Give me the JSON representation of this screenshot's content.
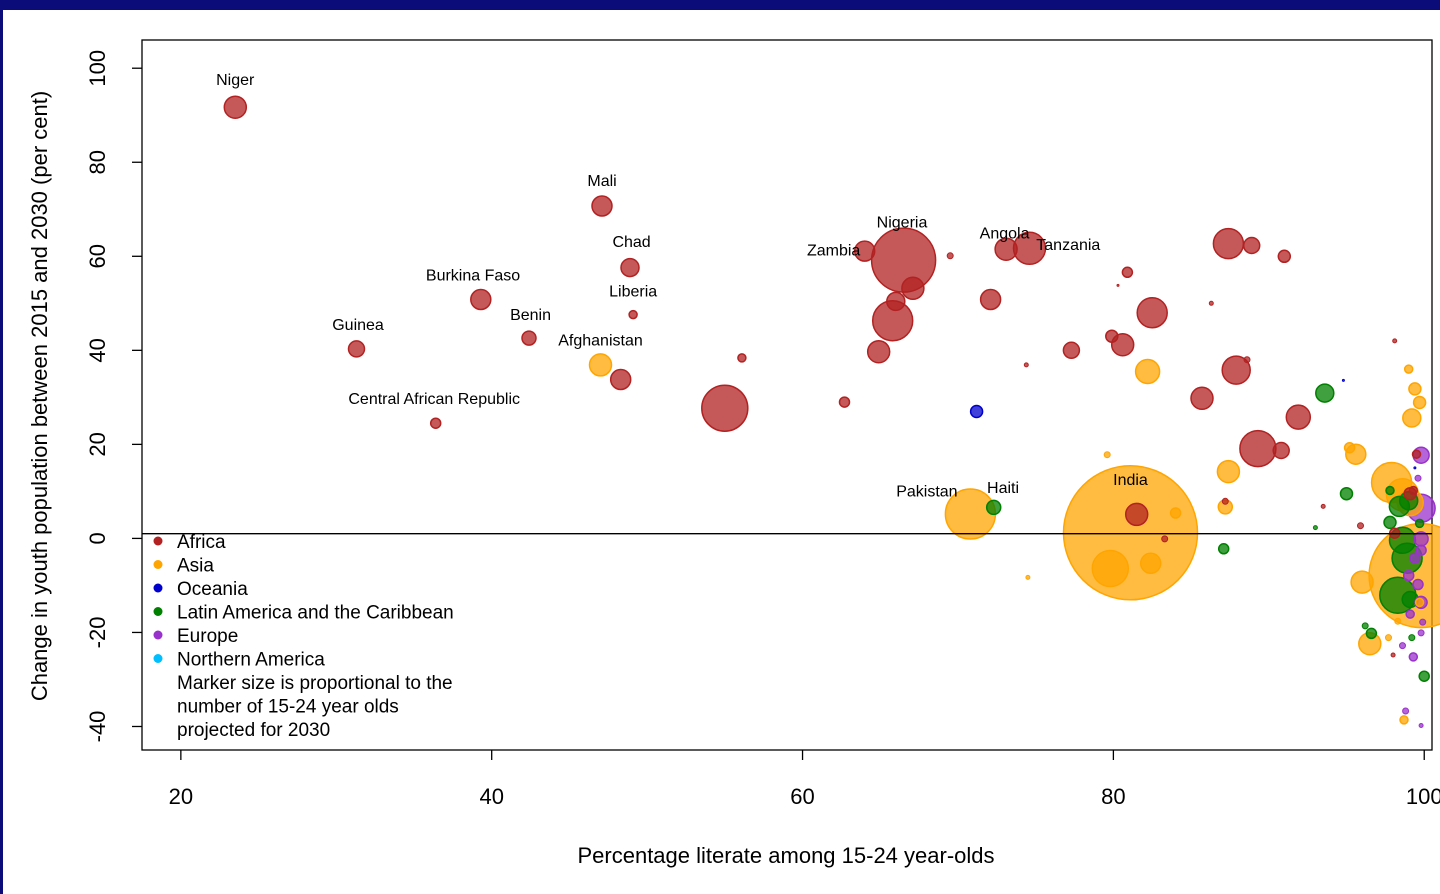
{
  "frame": {
    "border_color": "#0b0b7a"
  },
  "chart_data": {
    "type": "scatter",
    "title": "",
    "xlabel": "Percentage literate among 15-24 year-olds",
    "ylabel": "Change in youth population between 2015 and 2030 (per cent)",
    "xlim": [
      17.5,
      100.5
    ],
    "ylim": [
      -45,
      106
    ],
    "x_ticks": [
      20,
      40,
      60,
      80,
      100
    ],
    "y_ticks": [
      -40,
      -20,
      0,
      20,
      40,
      60,
      80,
      100
    ],
    "reference_line_y": 1,
    "grid": false,
    "legend": {
      "placement": "bottom-left",
      "entries": [
        {
          "name": "Africa",
          "color": "#b22222"
        },
        {
          "name": "Asia",
          "color": "#ffa500"
        },
        {
          "name": "Oceania",
          "color": "#0000cd"
        },
        {
          "name": "Latin America and the Caribbean",
          "color": "#008000"
        },
        {
          "name": "Europe",
          "color": "#9932cc"
        },
        {
          "name": "Northern America",
          "color": "#00bfff"
        }
      ],
      "note_lines": [
        "Marker size is proportional to the",
        "number of 15-24 year olds",
        "projected for 2030"
      ]
    },
    "series": [
      {
        "name": "Africa",
        "color": "#b22222",
        "points": [
          {
            "x": 23.5,
            "y": 91.7,
            "r": 11
          },
          {
            "x": 31.3,
            "y": 40.3,
            "r": 8
          },
          {
            "x": 36.4,
            "y": 24.5,
            "r": 5
          },
          {
            "x": 39.3,
            "y": 50.8,
            "r": 10
          },
          {
            "x": 42.4,
            "y": 42.6,
            "r": 7
          },
          {
            "x": 47.1,
            "y": 70.7,
            "r": 10
          },
          {
            "x": 48.9,
            "y": 57.6,
            "r": 9
          },
          {
            "x": 49.1,
            "y": 47.6,
            "r": 4
          },
          {
            "x": 48.3,
            "y": 33.8,
            "r": 10
          },
          {
            "x": 56.1,
            "y": 38.4,
            "r": 4
          },
          {
            "x": 55.0,
            "y": 27.7,
            "r": 23
          },
          {
            "x": 62.7,
            "y": 29.0,
            "r": 5
          },
          {
            "x": 64.0,
            "y": 61.1,
            "r": 10
          },
          {
            "x": 66.5,
            "y": 59.2,
            "r": 32
          },
          {
            "x": 67.1,
            "y": 53.2,
            "r": 11
          },
          {
            "x": 66.0,
            "y": 50.4,
            "r": 9
          },
          {
            "x": 65.8,
            "y": 46.3,
            "r": 20
          },
          {
            "x": 64.9,
            "y": 39.7,
            "r": 11
          },
          {
            "x": 69.5,
            "y": 60.1,
            "r": 3
          },
          {
            "x": 72.1,
            "y": 50.8,
            "r": 10
          },
          {
            "x": 73.1,
            "y": 61.5,
            "r": 11
          },
          {
            "x": 74.6,
            "y": 61.7,
            "r": 16
          },
          {
            "x": 74.4,
            "y": 36.9,
            "r": 2
          },
          {
            "x": 77.3,
            "y": 40.0,
            "r": 8
          },
          {
            "x": 79.9,
            "y": 43.0,
            "r": 6
          },
          {
            "x": 80.6,
            "y": 41.2,
            "r": 11
          },
          {
            "x": 80.9,
            "y": 56.6,
            "r": 5
          },
          {
            "x": 80.3,
            "y": 53.8,
            "r": 1
          },
          {
            "x": 82.5,
            "y": 48.0,
            "r": 15
          },
          {
            "x": 81.5,
            "y": 5.1,
            "r": 11
          },
          {
            "x": 83.3,
            "y": -0.1,
            "r": 3
          },
          {
            "x": 85.7,
            "y": 29.8,
            "r": 11
          },
          {
            "x": 86.3,
            "y": 50.0,
            "r": 2
          },
          {
            "x": 87.4,
            "y": 62.7,
            "r": 15
          },
          {
            "x": 88.9,
            "y": 62.3,
            "r": 8
          },
          {
            "x": 87.9,
            "y": 35.8,
            "r": 14
          },
          {
            "x": 88.6,
            "y": 38.0,
            "r": 3
          },
          {
            "x": 87.2,
            "y": 7.9,
            "r": 3
          },
          {
            "x": 91.0,
            "y": 60.0,
            "r": 6
          },
          {
            "x": 89.3,
            "y": 19.1,
            "r": 18
          },
          {
            "x": 90.8,
            "y": 18.7,
            "r": 8
          },
          {
            "x": 91.9,
            "y": 25.8,
            "r": 12
          },
          {
            "x": 93.5,
            "y": 6.8,
            "r": 2
          },
          {
            "x": 95.9,
            "y": 2.7,
            "r": 3
          },
          {
            "x": 98.1,
            "y": 42.0,
            "r": 2
          },
          {
            "x": 98.1,
            "y": 1.1,
            "r": 5
          },
          {
            "x": 99.3,
            "y": 10.2,
            "r": 4
          },
          {
            "x": 99.1,
            "y": 9.5,
            "r": 6
          },
          {
            "x": 99.5,
            "y": 17.9,
            "r": 4
          },
          {
            "x": 98.0,
            "y": -24.8,
            "r": 2
          }
        ]
      },
      {
        "name": "Asia",
        "color": "#ffa500",
        "points": [
          {
            "x": 81.1,
            "y": 1.2,
            "r": 67
          },
          {
            "x": 99.8,
            "y": -7.9,
            "r": 52
          },
          {
            "x": 97.9,
            "y": 11.9,
            "r": 20
          },
          {
            "x": 98.6,
            "y": 9.3,
            "r": 16
          },
          {
            "x": 99.1,
            "y": 7.6,
            "r": 13
          },
          {
            "x": 70.8,
            "y": 5.2,
            "r": 25
          },
          {
            "x": 79.8,
            "y": -6.4,
            "r": 18
          },
          {
            "x": 82.4,
            "y": -5.3,
            "r": 10
          },
          {
            "x": 47.0,
            "y": 36.9,
            "r": 11
          },
          {
            "x": 82.2,
            "y": 35.5,
            "r": 12
          },
          {
            "x": 87.4,
            "y": 14.2,
            "r": 11
          },
          {
            "x": 95.6,
            "y": 17.9,
            "r": 10
          },
          {
            "x": 95.2,
            "y": 19.3,
            "r": 5
          },
          {
            "x": 96.5,
            "y": -22.4,
            "r": 11
          },
          {
            "x": 96.0,
            "y": -9.3,
            "r": 11
          },
          {
            "x": 99.2,
            "y": 25.6,
            "r": 9
          },
          {
            "x": 99.7,
            "y": 28.9,
            "r": 6
          },
          {
            "x": 99.4,
            "y": 31.8,
            "r": 6
          },
          {
            "x": 99.0,
            "y": 36.0,
            "r": 4
          },
          {
            "x": 87.2,
            "y": 6.7,
            "r": 7
          },
          {
            "x": 84.0,
            "y": 5.4,
            "r": 5
          },
          {
            "x": 79.6,
            "y": 17.8,
            "r": 3
          },
          {
            "x": 74.5,
            "y": -8.3,
            "r": 2
          },
          {
            "x": 98.7,
            "y": -38.6,
            "r": 4
          },
          {
            "x": 97.7,
            "y": -21.1,
            "r": 3
          },
          {
            "x": 99.7,
            "y": -13.6,
            "r": 4
          },
          {
            "x": 98.3,
            "y": -17.6,
            "r": 3
          }
        ]
      },
      {
        "name": "Oceania",
        "color": "#0000cd",
        "points": [
          {
            "x": 71.2,
            "y": 27.0,
            "r": 6
          },
          {
            "x": 94.8,
            "y": 33.6,
            "r": 1
          },
          {
            "x": 99.4,
            "y": 15.0,
            "r": 1
          }
        ]
      },
      {
        "name": "Latin America and the Caribbean",
        "color": "#008000",
        "points": [
          {
            "x": 72.3,
            "y": 6.6,
            "r": 7
          },
          {
            "x": 87.1,
            "y": -2.2,
            "r": 5
          },
          {
            "x": 93.6,
            "y": 30.9,
            "r": 9
          },
          {
            "x": 95.0,
            "y": 9.5,
            "r": 6
          },
          {
            "x": 93.0,
            "y": 2.3,
            "r": 2
          },
          {
            "x": 96.2,
            "y": -18.6,
            "r": 3
          },
          {
            "x": 96.6,
            "y": -20.2,
            "r": 5
          },
          {
            "x": 97.8,
            "y": 10.2,
            "r": 4
          },
          {
            "x": 97.8,
            "y": 3.4,
            "r": 6
          },
          {
            "x": 98.4,
            "y": 6.8,
            "r": 10
          },
          {
            "x": 98.6,
            "y": -0.4,
            "r": 13
          },
          {
            "x": 98.9,
            "y": -4.2,
            "r": 15
          },
          {
            "x": 98.3,
            "y": -12.1,
            "r": 18
          },
          {
            "x": 99.1,
            "y": -13.0,
            "r": 8
          },
          {
            "x": 99.0,
            "y": 8.0,
            "r": 9
          },
          {
            "x": 99.2,
            "y": -21.1,
            "r": 3
          },
          {
            "x": 100.0,
            "y": -29.3,
            "r": 5
          },
          {
            "x": 99.7,
            "y": 3.2,
            "r": 4
          }
        ]
      },
      {
        "name": "Europe",
        "color": "#9932cc",
        "points": [
          {
            "x": 99.8,
            "y": 6.4,
            "r": 14
          },
          {
            "x": 99.8,
            "y": 17.7,
            "r": 8
          },
          {
            "x": 99.8,
            "y": -0.1,
            "r": 7
          },
          {
            "x": 99.4,
            "y": -4.2,
            "r": 5
          },
          {
            "x": 99.8,
            "y": -2.5,
            "r": 5
          },
          {
            "x": 99.0,
            "y": -7.9,
            "r": 5
          },
          {
            "x": 99.6,
            "y": -9.8,
            "r": 5
          },
          {
            "x": 99.8,
            "y": -13.6,
            "r": 6
          },
          {
            "x": 99.1,
            "y": -16.1,
            "r": 4
          },
          {
            "x": 99.9,
            "y": -17.8,
            "r": 3
          },
          {
            "x": 98.6,
            "y": -22.8,
            "r": 3
          },
          {
            "x": 99.3,
            "y": -25.2,
            "r": 4
          },
          {
            "x": 99.8,
            "y": -20.1,
            "r": 3
          },
          {
            "x": 98.8,
            "y": -36.7,
            "r": 3
          },
          {
            "x": 99.8,
            "y": -39.8,
            "r": 2
          },
          {
            "x": 99.6,
            "y": 12.8,
            "r": 3
          }
        ]
      },
      {
        "name": "Northern America",
        "color": "#00bfff",
        "points": []
      }
    ],
    "annotations": [
      {
        "text": "Niger",
        "x": 23.5,
        "y": 96.4
      },
      {
        "text": "Mali",
        "x": 47.1,
        "y": 74.9
      },
      {
        "text": "Chad",
        "x": 49.0,
        "y": 62.0
      },
      {
        "text": "Liberia",
        "x": 49.1,
        "y": 51.5
      },
      {
        "text": "Burkina Faso",
        "x": 38.8,
        "y": 54.8
      },
      {
        "text": "Benin",
        "x": 42.5,
        "y": 46.5
      },
      {
        "text": "Guinea",
        "x": 31.4,
        "y": 44.3
      },
      {
        "text": "Afghanistan",
        "x": 47.0,
        "y": 41.0
      },
      {
        "text": "Central African Republic",
        "x": 36.3,
        "y": 28.6
      },
      {
        "text": "Zambia",
        "x": 62.0,
        "y": 60.2
      },
      {
        "text": "Nigeria",
        "x": 66.4,
        "y": 66.1
      },
      {
        "text": "Angola",
        "x": 73.0,
        "y": 63.8
      },
      {
        "text": "Tanzania",
        "x": 77.1,
        "y": 61.3
      },
      {
        "text": "Pakistan",
        "x": 68.0,
        "y": 8.9
      },
      {
        "text": "Haiti",
        "x": 72.9,
        "y": 9.7
      },
      {
        "text": "India",
        "x": 81.1,
        "y": 11.4
      }
    ]
  }
}
